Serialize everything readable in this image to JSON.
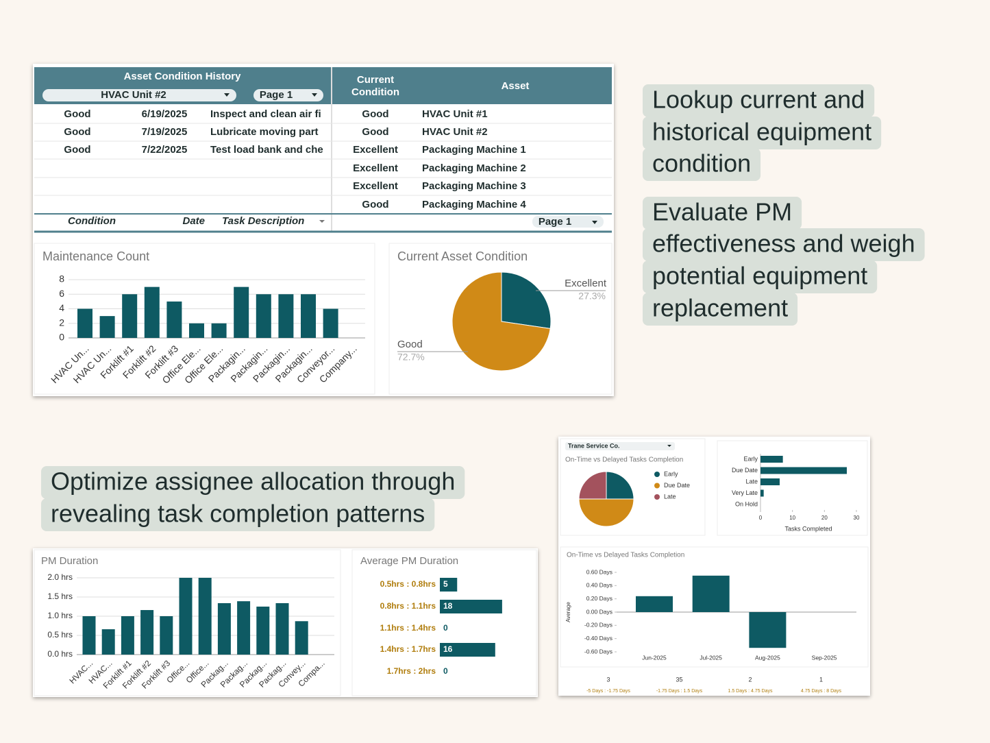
{
  "captions": [
    [
      "Lookup current and",
      "historical equipment",
      "condition"
    ],
    [
      "Evaluate PM",
      "effectiveness and weigh",
      "potential equipment",
      "replacement"
    ],
    [
      "Optimize assignee allocation through",
      "revealing task completion patterns"
    ]
  ],
  "history_table": {
    "title": "Asset Condition History",
    "asset_filter": "HVAC Unit #2",
    "page": "Page 1",
    "rows": [
      [
        "Good",
        "6/19/2025",
        "Inspect and clean air fi"
      ],
      [
        "Good",
        "7/19/2025",
        "Lubricate moving part"
      ],
      [
        "Good",
        "7/22/2025",
        "Test load bank and che"
      ]
    ],
    "columns": [
      "Condition",
      "Date",
      "Task Description"
    ]
  },
  "condition_table": {
    "headers": [
      "Current Condition",
      "Asset"
    ],
    "rows": [
      [
        "Good",
        "HVAC Unit #1"
      ],
      [
        "Good",
        "HVAC Unit #2"
      ],
      [
        "Excellent",
        "Packaging Machine 1"
      ],
      [
        "Excellent",
        "Packaging Machine 2"
      ],
      [
        "Excellent",
        "Packaging Machine 3"
      ],
      [
        "Good",
        "Packaging Machine 4"
      ]
    ],
    "page": "Page 1"
  },
  "filter": "Trane Service Co.",
  "scorecards": {
    "counts": [
      3,
      35,
      2,
      1
    ],
    "ranges": [
      "-5 Days : -1.75 Days",
      "-1.75 Days : 1.5 Days",
      "1.5 Days : 4.75 Days",
      "4.75 Days : 8 Days"
    ]
  },
  "chart_data": [
    {
      "type": "bar",
      "title": "Maintenance Count",
      "color": "#0e5a63",
      "categories": [
        "HVAC Un...",
        "HVAC Un...",
        "Forklift #1",
        "Forklift #2",
        "Forklift #3",
        "Office Ele...",
        "Office Ele...",
        "Packagin...",
        "Packagin...",
        "Packagin...",
        "Packagin...",
        "Conveyor...",
        "Company..."
      ],
      "values": [
        4,
        3,
        6,
        7,
        5,
        2,
        2,
        7,
        6,
        6,
        6,
        4,
        0
      ],
      "ylim": [
        0,
        8
      ],
      "yticks": [
        0,
        2,
        4,
        6,
        8
      ],
      "grid": true
    },
    {
      "type": "pie",
      "title": "Current Asset Condition",
      "categories": [
        "Excellent",
        "Good"
      ],
      "values": [
        27.3,
        72.7
      ],
      "value_labels": [
        "27.3%",
        "72.7%"
      ],
      "colors": [
        "#0e5a63",
        "#d08a17"
      ]
    },
    {
      "type": "bar",
      "title": "PM Duration",
      "color": "#0e5a63",
      "categories": [
        "HVAC...",
        "HVAC...",
        "Forklift #1",
        "Forklift #2",
        "Forklift #3",
        "Office...",
        "Office...",
        "Packag...",
        "Packag...",
        "Packag...",
        "Packag...",
        "Convey...",
        "Compa..."
      ],
      "values": [
        1.0,
        0.66,
        1.0,
        1.16,
        1.0,
        2.0,
        2.0,
        1.34,
        1.39,
        1.25,
        1.34,
        0.87,
        0
      ],
      "ylim": [
        0,
        2
      ],
      "yticks": [
        {
          "value": 0,
          "label": "0.0 hrs"
        },
        {
          "value": 0.5,
          "label": "0.5 hrs"
        },
        {
          "value": 1,
          "label": "1.0 hrs"
        },
        {
          "value": 1.5,
          "label": "1.5 hrs"
        },
        {
          "value": 2,
          "label": "2.0 hrs"
        }
      ],
      "grid": true
    },
    {
      "type": "hbar-labels",
      "title": "Average PM Duration",
      "color": "#0e5a63",
      "categories": [
        "0.5hrs : 0.8hrs",
        "0.8hrs : 1.1hrs",
        "1.1hrs : 1.4hrs",
        "1.4hrs : 1.7hrs",
        "1.7hrs : 2hrs"
      ],
      "values": [
        5,
        18,
        0,
        16,
        0
      ]
    },
    {
      "type": "pie",
      "title": "On-Time vs Delayed Tasks Completion",
      "categories": [
        "Early",
        "Due Date",
        "Late"
      ],
      "values": [
        25,
        50,
        25
      ],
      "colors": [
        "#0e5a63",
        "#d08a17",
        "#a3525d"
      ]
    },
    {
      "type": "hbar",
      "color": "#0e5a63",
      "categories": [
        "Early",
        "Due Date",
        "Late",
        "Very Late",
        "On Hold"
      ],
      "values": [
        7,
        27,
        6,
        1,
        0
      ],
      "xlim": [
        0,
        30
      ],
      "xticks": [
        0,
        10,
        20,
        30
      ],
      "xlabel": "Tasks Completed"
    },
    {
      "type": "bar",
      "title": "On-Time vs Delayed Tasks Completion",
      "color": "#0e5a63",
      "ylabel": "Average",
      "categories": [
        "Jun-2025",
        "Jul-2025",
        "Aug-2025",
        "Sep-2025"
      ],
      "values": [
        0.24,
        0.55,
        -0.54,
        0
      ],
      "ylim": [
        -0.6,
        0.6
      ],
      "yticks": [
        {
          "value": -0.6,
          "label": "-0.60 Days"
        },
        {
          "value": -0.4,
          "label": "-0.40 Days"
        },
        {
          "value": -0.2,
          "label": "-0.20 Days"
        },
        {
          "value": 0,
          "label": "0.00 Days"
        },
        {
          "value": 0.2,
          "label": "0.20 Days"
        },
        {
          "value": 0.4,
          "label": "0.40 Days"
        },
        {
          "value": 0.6,
          "label": "0.60 Days"
        }
      ],
      "grid": false
    }
  ]
}
